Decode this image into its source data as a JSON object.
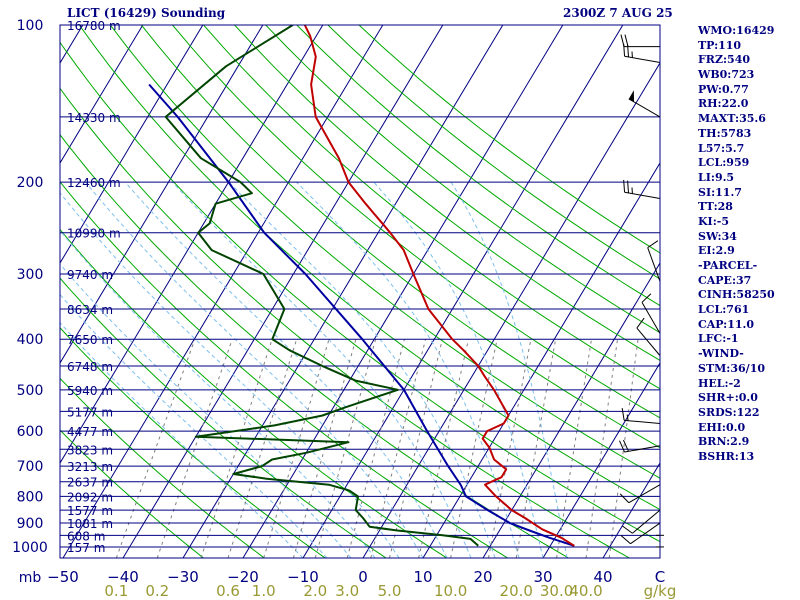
{
  "header": {
    "station": "LICT (16429) Sounding",
    "time": "2300Z  7 AUG 25"
  },
  "colors": {
    "isobar": "#000080",
    "temperature": "#c00000",
    "dewpoint": "#004400",
    "parcel": "#0000a0",
    "isotherm": "#000080",
    "dry_adiabat": "#00aa00",
    "moist_adiabat": "#7ec0ee",
    "mixing_ratio": "#808080"
  },
  "stats": [
    "WMO:16429",
    "TP:110",
    "FRZ:540",
    "WB0:723",
    "PW:0.77",
    "RH:22.0",
    "MAXT:35.6",
    "TH:5783",
    "L57:5.7",
    "LCL:959",
    "LI:9.5",
    "SI:11.7",
    "TT:28",
    "KI:-5",
    "SW:34",
    "EI:2.9",
    "-PARCEL-",
    "CAPE:37",
    "CINH:58250",
    "LCL:761",
    "CAP:11.0",
    "LFC:-1",
    "-WIND-",
    "STM:36/10",
    "HEL:-2",
    "SHR+:0.0",
    "SRDS:122",
    "EHI:0.0",
    "BRN:2.9",
    "BSHR:13"
  ],
  "chart_data": {
    "type": "skew-t",
    "pressure_levels": [
      100,
      200,
      300,
      400,
      500,
      600,
      700,
      800,
      900,
      1000
    ],
    "height_labels": [
      {
        "p": 100,
        "label": "16780 m"
      },
      {
        "p": 150,
        "label": "14330 m"
      },
      {
        "p": 200,
        "label": "12460 m"
      },
      {
        "p": 250,
        "label": "10990 m"
      },
      {
        "p": 300,
        "label": "9740 m"
      },
      {
        "p": 350,
        "label": "8634 m"
      },
      {
        "p": 400,
        "label": "7650 m"
      },
      {
        "p": 450,
        "label": "6748 m"
      },
      {
        "p": 500,
        "label": "5940 m"
      },
      {
        "p": 550,
        "label": "5177 m"
      },
      {
        "p": 600,
        "label": "4477 m"
      },
      {
        "p": 650,
        "label": "3823 m"
      },
      {
        "p": 700,
        "label": "3213 m"
      },
      {
        "p": 750,
        "label": "2637 m"
      },
      {
        "p": 800,
        "label": "2092 m"
      },
      {
        "p": 850,
        "label": "1577 m"
      },
      {
        "p": 900,
        "label": "1081 m"
      },
      {
        "p": 950,
        "label": "608 m"
      },
      {
        "p": 1000,
        "label": "157 m"
      }
    ],
    "x_tick_labels": [
      "−50",
      "−40",
      "−30",
      "−20",
      "−10",
      "0",
      "10",
      "20",
      "30",
      "40",
      "C"
    ],
    "x_tick_values": [
      -50,
      -40,
      -30,
      -20,
      -10,
      0,
      10,
      20,
      30,
      40
    ],
    "mixing_ratio_labels": [
      "0.1",
      "0.2",
      "0.6",
      "1.0",
      "2.0",
      "3.0",
      "5.0",
      "10.0",
      "20.0",
      "30.0",
      "40.0",
      "g/kg"
    ],
    "mixing_ratio_values": [
      0.1,
      0.2,
      0.6,
      1.0,
      2.0,
      3.0,
      5.0,
      10.0,
      20.0,
      30.0,
      40.0
    ],
    "ylabel": "mb",
    "temperature": [
      [
        995,
        34
      ],
      [
        960,
        31
      ],
      [
        925,
        27
      ],
      [
        880,
        23
      ],
      [
        850,
        20
      ],
      [
        800,
        16
      ],
      [
        760,
        13
      ],
      [
        735,
        15
      ],
      [
        710,
        15
      ],
      [
        680,
        12
      ],
      [
        645,
        10
      ],
      [
        620,
        8
      ],
      [
        600,
        8
      ],
      [
        580,
        10
      ],
      [
        560,
        10
      ],
      [
        500,
        5
      ],
      [
        470,
        2
      ],
      [
        450,
        0
      ],
      [
        420,
        -4
      ],
      [
        400,
        -7
      ],
      [
        350,
        -14
      ],
      [
        300,
        -20
      ],
      [
        270,
        -24
      ],
      [
        250,
        -28
      ],
      [
        220,
        -35
      ],
      [
        200,
        -40
      ],
      [
        180,
        -44
      ],
      [
        150,
        -52
      ],
      [
        130,
        -56
      ],
      [
        115,
        -58
      ],
      [
        105,
        -61
      ],
      [
        100,
        -63
      ]
    ],
    "dewpoint": [
      [
        995,
        18
      ],
      [
        965,
        16
      ],
      [
        950,
        11
      ],
      [
        930,
        3
      ],
      [
        915,
        -2
      ],
      [
        880,
        -4
      ],
      [
        850,
        -6
      ],
      [
        800,
        -7
      ],
      [
        780,
        -9
      ],
      [
        760,
        -13
      ],
      [
        740,
        -24
      ],
      [
        725,
        -30
      ],
      [
        700,
        -26
      ],
      [
        680,
        -25
      ],
      [
        660,
        -20
      ],
      [
        630,
        -14
      ],
      [
        615,
        -40
      ],
      [
        585,
        -28
      ],
      [
        560,
        -21
      ],
      [
        540,
        -18
      ],
      [
        500,
        -11
      ],
      [
        480,
        -19
      ],
      [
        450,
        -26
      ],
      [
        420,
        -33
      ],
      [
        400,
        -37
      ],
      [
        350,
        -38
      ],
      [
        300,
        -45
      ],
      [
        270,
        -56
      ],
      [
        250,
        -60
      ],
      [
        240,
        -59
      ],
      [
        220,
        -60
      ],
      [
        210,
        -55
      ],
      [
        200,
        -58
      ],
      [
        180,
        -67
      ],
      [
        150,
        -77
      ],
      [
        120,
        -72
      ],
      [
        100,
        -65
      ]
    ],
    "parcel": [
      [
        995,
        34
      ],
      [
        960,
        29
      ],
      [
        930,
        25
      ],
      [
        900,
        21
      ],
      [
        850,
        16
      ],
      [
        800,
        11
      ],
      [
        761,
        9
      ],
      [
        700,
        5
      ],
      [
        600,
        -2
      ],
      [
        500,
        -10
      ],
      [
        400,
        -22
      ],
      [
        300,
        -38
      ],
      [
        250,
        -49
      ],
      [
        200,
        -60
      ],
      [
        150,
        -75
      ],
      [
        130,
        -83
      ]
    ],
    "wind_barbs": [
      {
        "p": 1000,
        "dir": 0,
        "kt": 0
      },
      {
        "p": 950,
        "dir": 10,
        "kt": 0
      },
      {
        "p": 900,
        "dir": 235,
        "kt": 10
      },
      {
        "p": 850,
        "dir": 230,
        "kt": 10
      },
      {
        "p": 760,
        "dir": 240,
        "kt": 10
      },
      {
        "p": 640,
        "dir": 260,
        "kt": 20
      },
      {
        "p": 580,
        "dir": 275,
        "kt": 15
      },
      {
        "p": 430,
        "dir": 320,
        "kt": 10
      },
      {
        "p": 390,
        "dir": 330,
        "kt": 10
      },
      {
        "p": 310,
        "dir": 340,
        "kt": 10
      },
      {
        "p": 215,
        "dir": 280,
        "kt": 25
      },
      {
        "p": 150,
        "dir": 300,
        "kt": 50
      },
      {
        "p": 118,
        "dir": 280,
        "kt": 25
      },
      {
        "p": 110,
        "dir": 270,
        "kt": 20
      }
    ]
  }
}
